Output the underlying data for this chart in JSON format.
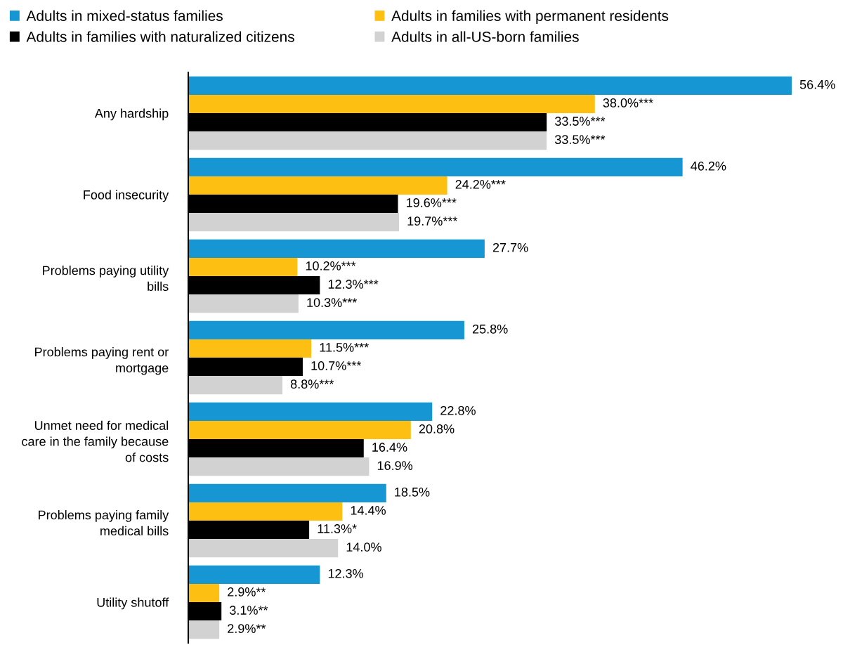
{
  "chart_data": {
    "type": "bar",
    "orientation": "horizontal",
    "legend": "top",
    "grid": false,
    "categories": [
      "Any hardship",
      "Food insecurity",
      "Problems paying utility\nbills",
      "Problems paying rent or\nmortgage",
      "Unmet need for medical\ncare in the family because\nof costs",
      "Problems paying family\nmedical bills",
      "Utility shutoff"
    ],
    "series": [
      {
        "name": "Adults in mixed-status families",
        "color": "#1696d2",
        "values": [
          56.4,
          46.2,
          27.7,
          25.8,
          22.8,
          18.5,
          12.3
        ],
        "value_labels": [
          "56.4%",
          "46.2%",
          "27.7%",
          "25.8%",
          "22.8%",
          "18.5%",
          "12.3%"
        ]
      },
      {
        "name": "Adults in families with permanent residents",
        "color": "#fdbf11",
        "values": [
          38.0,
          24.2,
          10.2,
          11.5,
          20.8,
          14.4,
          2.9
        ],
        "value_labels": [
          "38.0%***",
          "24.2%***",
          "10.2%***",
          "11.5%***",
          "20.8%",
          "14.4%",
          "2.9%**"
        ]
      },
      {
        "name": "Adults in families with naturalized citizens",
        "color": "#000000",
        "values": [
          33.5,
          19.6,
          12.3,
          10.7,
          16.4,
          11.3,
          3.1
        ],
        "value_labels": [
          "33.5%***",
          "19.6%***",
          "12.3%***",
          "10.7%***",
          "16.4%",
          "11.3%*",
          "3.1%**"
        ]
      },
      {
        "name": "Adults in all-US-born families",
        "color": "#d2d2d2",
        "values": [
          33.5,
          19.7,
          10.3,
          8.8,
          16.9,
          14.0,
          2.9
        ],
        "value_labels": [
          "33.5%***",
          "19.7%***",
          "10.3%***",
          "8.8%***",
          "16.9%",
          "14.0%",
          "2.9%**"
        ]
      }
    ]
  }
}
